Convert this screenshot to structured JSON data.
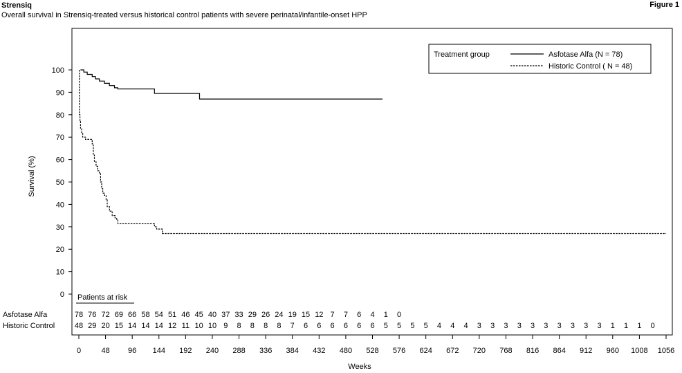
{
  "header": {
    "brand": "Strensiq",
    "subtitle": "Overall survival in Strensiq-treated versus historical control patients with severe perinatal/infantile-onset HPP",
    "figure_label": "Figure 1"
  },
  "chart_data": {
    "type": "line",
    "title": "",
    "xlabel": "Weeks",
    "ylabel": "Survival (%)",
    "xlim": [
      0,
      1056
    ],
    "ylim": [
      0,
      100
    ],
    "x_ticks": [
      0,
      48,
      96,
      144,
      192,
      240,
      288,
      336,
      384,
      432,
      480,
      528,
      576,
      624,
      672,
      720,
      768,
      816,
      864,
      912,
      960,
      1008,
      1056
    ],
    "y_ticks": [
      0,
      10,
      20,
      30,
      40,
      50,
      60,
      70,
      80,
      90,
      100
    ],
    "grid": false,
    "legend": {
      "title": "Treatment group",
      "placement": "top-right",
      "entries": [
        "Asfotase Alfa (N = 78)",
        "Historic Control ( N = 48)"
      ]
    },
    "series": [
      {
        "name": "Asfotase Alfa (N = 78)",
        "style": "solid",
        "points": [
          [
            3,
            100
          ],
          [
            9,
            100
          ],
          [
            9,
            99
          ],
          [
            15,
            99
          ],
          [
            15,
            98
          ],
          [
            24,
            98
          ],
          [
            24,
            97
          ],
          [
            30,
            97
          ],
          [
            30,
            96
          ],
          [
            37,
            96
          ],
          [
            37,
            95
          ],
          [
            46,
            95
          ],
          [
            46,
            94
          ],
          [
            55,
            94
          ],
          [
            55,
            93
          ],
          [
            64,
            93
          ],
          [
            64,
            92
          ],
          [
            70,
            92
          ],
          [
            70,
            91.5
          ],
          [
            136,
            91.5
          ],
          [
            136,
            89.5
          ],
          [
            217,
            89.5
          ],
          [
            217,
            87
          ],
          [
            546,
            87
          ]
        ]
      },
      {
        "name": "Historic Control ( N = 48)",
        "style": "dashed",
        "points": [
          [
            1,
            100
          ],
          [
            1,
            80
          ],
          [
            2,
            80
          ],
          [
            2,
            77
          ],
          [
            3,
            77
          ],
          [
            3,
            74
          ],
          [
            5,
            74
          ],
          [
            5,
            72
          ],
          [
            7,
            72
          ],
          [
            7,
            70
          ],
          [
            12,
            70
          ],
          [
            12,
            69
          ],
          [
            24,
            69
          ],
          [
            24,
            67
          ],
          [
            26,
            67
          ],
          [
            26,
            62
          ],
          [
            28,
            62
          ],
          [
            28,
            59
          ],
          [
            31,
            59
          ],
          [
            31,
            57
          ],
          [
            34,
            57
          ],
          [
            34,
            55
          ],
          [
            37,
            55
          ],
          [
            37,
            54
          ],
          [
            39,
            54
          ],
          [
            39,
            50
          ],
          [
            41,
            50
          ],
          [
            41,
            47
          ],
          [
            43,
            47
          ],
          [
            43,
            45
          ],
          [
            46,
            45
          ],
          [
            46,
            44
          ],
          [
            49,
            44
          ],
          [
            49,
            42
          ],
          [
            51,
            42
          ],
          [
            51,
            39
          ],
          [
            55,
            39
          ],
          [
            55,
            37
          ],
          [
            60,
            37
          ],
          [
            60,
            35
          ],
          [
            65,
            35
          ],
          [
            65,
            34
          ],
          [
            68,
            34
          ],
          [
            68,
            33
          ],
          [
            70,
            33
          ],
          [
            70,
            31.5
          ],
          [
            136,
            31.5
          ],
          [
            136,
            30
          ],
          [
            140,
            30
          ],
          [
            140,
            29
          ],
          [
            150,
            29
          ],
          [
            150,
            27
          ],
          [
            1056,
            27
          ]
        ]
      }
    ],
    "risk_table": {
      "title": "Patients at risk",
      "rows": [
        {
          "label": "Asfotase Alfa",
          "values": [
            "78",
            "76",
            "72",
            "69",
            "66",
            "58",
            "54",
            "51",
            "46",
            "45",
            "40",
            "37",
            "33",
            "29",
            "26",
            "24",
            "19",
            "15",
            "12",
            "7",
            "7",
            "6",
            "4",
            "1",
            "0"
          ]
        },
        {
          "label": "Historic Control",
          "values": [
            "48",
            "29",
            "20",
            "15",
            "14",
            "14",
            "14",
            "12",
            "11",
            "10",
            "10",
            "9",
            "8",
            "8",
            "8",
            "8",
            "7",
            "6",
            "6",
            "6",
            "6",
            "6",
            "6",
            "5",
            "5",
            "5",
            "5",
            "4",
            "4",
            "4",
            "3",
            "3",
            "3",
            "3",
            "3",
            "3",
            "3",
            "3",
            "3",
            "3",
            "1",
            "1",
            "1",
            "0"
          ]
        }
      ]
    }
  }
}
